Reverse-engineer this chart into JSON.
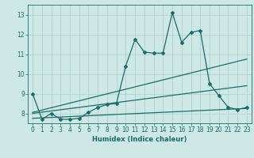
{
  "title": "",
  "xlabel": "Humidex (Indice chaleur)",
  "ylabel": "",
  "xlim": [
    -0.5,
    23.5
  ],
  "ylim": [
    7.5,
    13.5
  ],
  "yticks": [
    8,
    9,
    10,
    11,
    12,
    13
  ],
  "xticks": [
    0,
    1,
    2,
    3,
    4,
    5,
    6,
    7,
    8,
    9,
    10,
    11,
    12,
    13,
    14,
    15,
    16,
    17,
    18,
    19,
    20,
    21,
    22,
    23
  ],
  "bg_color": "#cde8e5",
  "line_color": "#1a6b6b",
  "grid_color": "#aacfcc",
  "lines": [
    {
      "x": [
        0,
        1,
        2,
        3,
        4,
        5,
        6,
        7,
        8,
        9,
        10,
        11,
        12,
        13,
        14,
        15,
        16,
        17,
        18,
        19,
        20,
        21,
        22,
        23
      ],
      "y": [
        9.0,
        7.7,
        8.0,
        7.7,
        7.7,
        7.75,
        8.05,
        8.3,
        8.45,
        8.5,
        10.4,
        11.75,
        11.1,
        11.05,
        11.05,
        13.1,
        11.6,
        12.1,
        12.2,
        9.5,
        8.9,
        8.3,
        8.2,
        8.3
      ],
      "marker": "D",
      "markersize": 2.0,
      "linewidth": 0.9
    },
    {
      "x": [
        0,
        23
      ],
      "y": [
        8.05,
        10.75
      ],
      "marker": null,
      "linewidth": 0.9
    },
    {
      "x": [
        0,
        23
      ],
      "y": [
        8.0,
        9.4
      ],
      "marker": null,
      "linewidth": 0.9
    },
    {
      "x": [
        0,
        23
      ],
      "y": [
        7.75,
        8.25
      ],
      "marker": null,
      "linewidth": 0.9
    }
  ],
  "tick_labelsize": 5.5,
  "xlabel_fontsize": 6.0,
  "xlabel_fontweight": "bold"
}
